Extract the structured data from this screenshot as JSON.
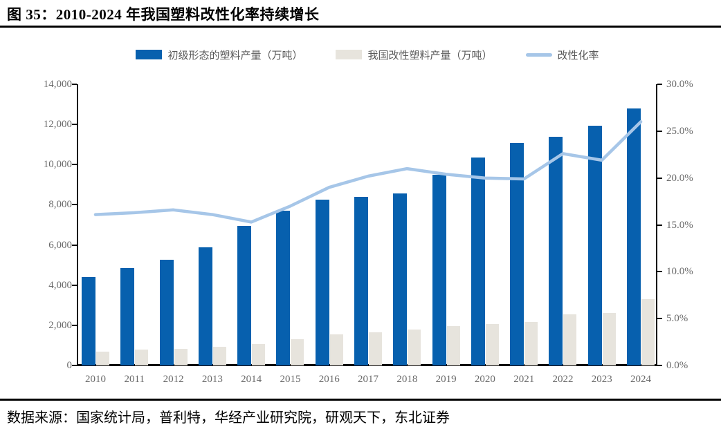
{
  "title": "图 35：2010-2024 年我国塑料改性化率持续增长",
  "source": "数据来源：国家统计局，普利特，华经产业研究院，研观天下，东北证券",
  "colors": {
    "primary_bar": "#0760AE",
    "modified_bar": "#E7E4DD",
    "rate_line": "#A6C6E8",
    "axis_line": "#000000",
    "axis_text": "#6A6A6A",
    "legend_text": "#595959",
    "title_text": "#000000"
  },
  "chart_data": {
    "type": "bar",
    "subtype": "dual-axis bar + line combo",
    "categories": [
      "2010",
      "2011",
      "2012",
      "2013",
      "2014",
      "2015",
      "2016",
      "2017",
      "2018",
      "2019",
      "2020",
      "2021",
      "2022",
      "2023",
      "2024"
    ],
    "series": [
      {
        "name": "初级形态的塑料产量（万吨）",
        "type": "bar",
        "axis": "left",
        "color": "#0760AE",
        "values": [
          4400,
          4850,
          5250,
          5880,
          6950,
          7690,
          8250,
          8400,
          8580,
          9500,
          10350,
          11070,
          11400,
          11950,
          12780
        ]
      },
      {
        "name": "我国改性塑料产量（万吨）",
        "type": "bar",
        "axis": "left",
        "color": "#E7E4DD",
        "values": [
          700,
          780,
          830,
          930,
          1060,
          1310,
          1550,
          1660,
          1790,
          1970,
          2050,
          2150,
          2550,
          2610,
          3300
        ]
      },
      {
        "name": "改性化率",
        "type": "line",
        "axis": "right",
        "color": "#A6C6E8",
        "values": [
          16.1,
          16.3,
          16.6,
          16.1,
          15.3,
          17.0,
          19.0,
          20.2,
          21.0,
          20.4,
          20.0,
          19.9,
          22.6,
          21.9,
          26.0
        ]
      }
    ],
    "left_axis": {
      "min": 0,
      "max": 14000,
      "step": 2000,
      "tick_labels": [
        "0",
        "2,000",
        "4,000",
        "6,000",
        "8,000",
        "10,000",
        "12,000",
        "14,000"
      ]
    },
    "right_axis": {
      "min": 0,
      "max": 30,
      "step": 5,
      "tick_labels": [
        "0.0%",
        "5.0%",
        "10.0%",
        "15.0%",
        "20.0%",
        "25.0%",
        "30.0%"
      ]
    },
    "legend_position": "top",
    "grid": false
  }
}
